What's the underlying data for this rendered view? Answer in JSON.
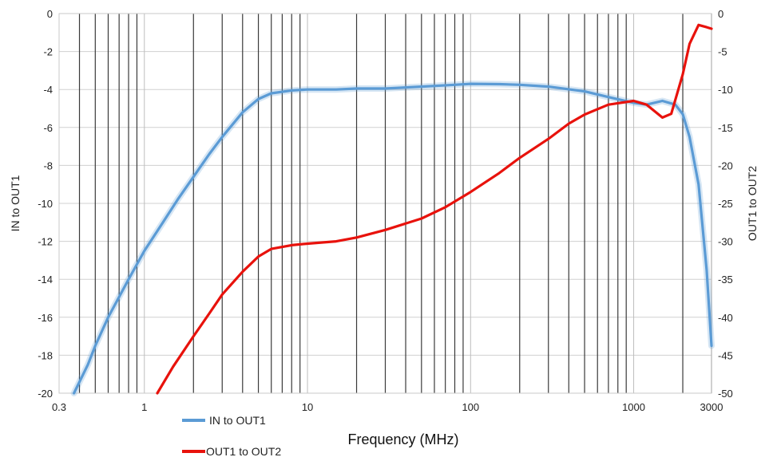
{
  "chart_data": {
    "type": "line",
    "xlabel": "Frequency (MHz)",
    "ylabel_left": "IN to OUT1",
    "ylabel_right": "OUT1 to OUT2",
    "x_scale": "log",
    "xlim": [
      0.3,
      3000
    ],
    "ylim_left": [
      -20,
      0
    ],
    "ylim_right": [
      -50,
      0
    ],
    "x_ticks": [
      {
        "value": 0.3,
        "label": "0.3"
      },
      {
        "value": 1,
        "label": "1"
      },
      {
        "value": 10,
        "label": "10"
      },
      {
        "value": 100,
        "label": "100"
      },
      {
        "value": 1000,
        "label": "1000"
      },
      {
        "value": 3000,
        "label": "3000"
      }
    ],
    "y_ticks_left": [
      0,
      -2,
      -4,
      -6,
      -8,
      -10,
      -12,
      -14,
      -16,
      -18,
      -20
    ],
    "y_ticks_right": [
      0,
      -5,
      -10,
      -15,
      -20,
      -25,
      -30,
      -35,
      -40,
      -45,
      -50
    ],
    "grid": true,
    "legend_position": "bottom-left",
    "series": [
      {
        "name": "IN to OUT1",
        "axis": "left",
        "color": "#5b9bd5",
        "x": [
          0.37,
          0.45,
          0.5,
          0.6,
          0.8,
          1,
          1.3,
          1.6,
          2,
          2.5,
          3,
          4,
          5,
          6,
          8,
          10,
          15,
          20,
          30,
          50,
          80,
          100,
          150,
          200,
          300,
          500,
          700,
          1000,
          1200,
          1500,
          1800,
          2000,
          2200,
          2500,
          2800,
          3000
        ],
        "values": [
          -20.0,
          -18.5,
          -17.5,
          -16.0,
          -14.0,
          -12.5,
          -11.0,
          -9.8,
          -8.6,
          -7.4,
          -6.5,
          -5.2,
          -4.5,
          -4.2,
          -4.05,
          -4.0,
          -4.0,
          -3.95,
          -3.95,
          -3.85,
          -3.75,
          -3.7,
          -3.72,
          -3.75,
          -3.85,
          -4.1,
          -4.4,
          -4.7,
          -4.8,
          -4.6,
          -4.8,
          -5.3,
          -6.5,
          -9.0,
          -13.5,
          -17.5
        ]
      },
      {
        "name": "OUT1 to OUT2",
        "axis": "right",
        "color": "#e8120c",
        "x": [
          1.2,
          1.5,
          2,
          2.5,
          3,
          4,
          5,
          6,
          8,
          10,
          15,
          20,
          30,
          50,
          70,
          100,
          150,
          200,
          300,
          400,
          500,
          700,
          1000,
          1200,
          1500,
          1700,
          2000,
          2200,
          2500,
          2800,
          3000
        ],
        "values": [
          -50.0,
          -46.5,
          -42.5,
          -39.5,
          -37.0,
          -34.0,
          -32.0,
          -31.0,
          -30.5,
          -30.3,
          -30.0,
          -29.5,
          -28.5,
          -27.0,
          -25.5,
          -23.5,
          -21.0,
          -19.0,
          -16.5,
          -14.5,
          -13.3,
          -12.0,
          -11.5,
          -12.0,
          -13.7,
          -13.2,
          -8.0,
          -4.0,
          -1.5,
          -1.8,
          -2.0
        ]
      }
    ]
  }
}
